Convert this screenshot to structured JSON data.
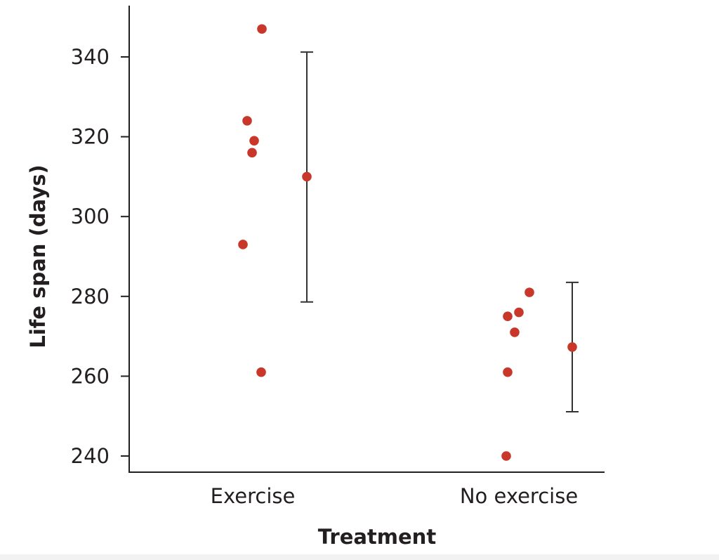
{
  "chart_data": {
    "type": "scatter",
    "title": "",
    "xlabel": "Treatment",
    "ylabel": "Life span (days)",
    "ylim": [
      236,
      353
    ],
    "yticks": [
      240,
      260,
      280,
      300,
      320,
      340
    ],
    "categories": [
      "Exercise",
      "No exercise"
    ],
    "grid": false,
    "legend": "none",
    "point_color": "#c8372a",
    "errorbar_color": "#333333",
    "series": [
      {
        "category": "Exercise",
        "values": [
          347,
          324,
          319,
          316,
          293,
          261
        ],
        "mean": 310,
        "error_low": 278.6,
        "error_high": 341.2
      },
      {
        "category": "No exercise",
        "values": [
          281,
          276,
          275,
          271,
          261,
          240
        ],
        "mean": 267.3,
        "error_low": 251.1,
        "error_high": 283.5
      }
    ]
  }
}
